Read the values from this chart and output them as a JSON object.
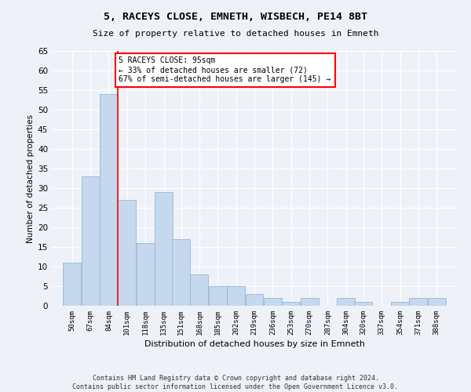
{
  "title": "5, RACEYS CLOSE, EMNETH, WISBECH, PE14 8BT",
  "subtitle": "Size of property relative to detached houses in Emneth",
  "xlabel": "Distribution of detached houses by size in Emneth",
  "ylabel": "Number of detached properties",
  "bar_color": "#c5d8ed",
  "bar_edge_color": "#8ab0d0",
  "background_color": "#eef2f8",
  "grid_color": "#ffffff",
  "annotation_text": "5 RACEYS CLOSE: 95sqm\n← 33% of detached houses are smaller (72)\n67% of semi-detached houses are larger (145) →",
  "annotation_box_color": "white",
  "annotation_box_edge_color": "red",
  "vline_color": "red",
  "footer_line1": "Contains HM Land Registry data © Crown copyright and database right 2024.",
  "footer_line2": "Contains public sector information licensed under the Open Government Licence v3.0.",
  "categories": [
    "50sqm",
    "67sqm",
    "84sqm",
    "101sqm",
    "118sqm",
    "135sqm",
    "151sqm",
    "168sqm",
    "185sqm",
    "202sqm",
    "219sqm",
    "236sqm",
    "253sqm",
    "270sqm",
    "287sqm",
    "304sqm",
    "320sqm",
    "337sqm",
    "354sqm",
    "371sqm",
    "388sqm"
  ],
  "bin_edges": [
    50,
    67,
    84,
    101,
    118,
    135,
    151,
    168,
    185,
    202,
    219,
    236,
    253,
    270,
    287,
    304,
    320,
    337,
    354,
    371,
    388
  ],
  "values": [
    11,
    33,
    54,
    27,
    16,
    29,
    17,
    8,
    5,
    5,
    3,
    2,
    1,
    2,
    0,
    2,
    1,
    0,
    1,
    2,
    2
  ],
  "ylim": [
    0,
    65
  ],
  "yticks": [
    0,
    5,
    10,
    15,
    20,
    25,
    30,
    35,
    40,
    45,
    50,
    55,
    60,
    65
  ],
  "vline_bin_index": 2,
  "figsize": [
    6.0,
    5.0
  ],
  "dpi": 100
}
